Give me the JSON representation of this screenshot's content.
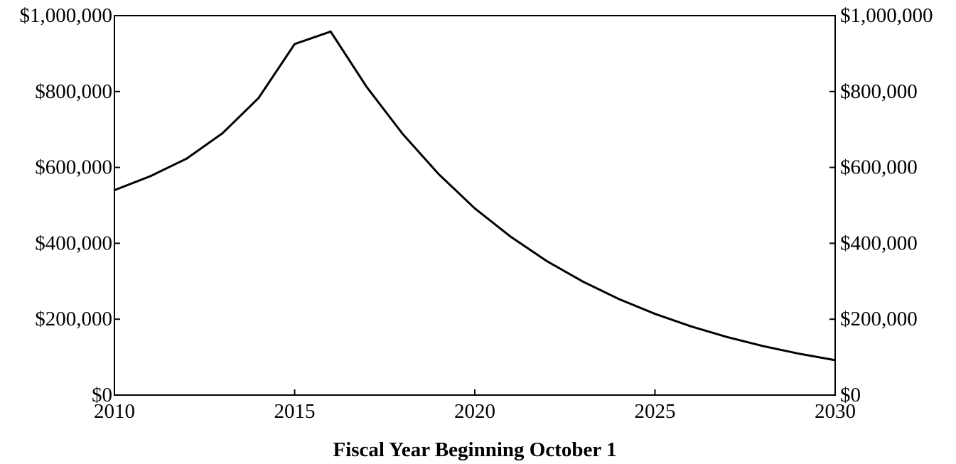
{
  "chart_data": {
    "type": "line",
    "title": "",
    "xlabel": "Fiscal Year Beginning October 1",
    "ylabel": "",
    "xlim": [
      2010,
      2030
    ],
    "ylim": [
      0,
      1000000
    ],
    "grid": false,
    "x_ticks": [
      2010,
      2015,
      2020,
      2025,
      2030
    ],
    "x_tick_labels": [
      "2010",
      "2015",
      "2020",
      "2025",
      "2030"
    ],
    "y_ticks": [
      0,
      200000,
      400000,
      600000,
      800000,
      1000000
    ],
    "y_tick_labels": [
      "$0",
      "$200,000",
      "$400,000",
      "$600,000",
      "$800,000",
      "$1,000,000"
    ],
    "y_axis_right_mirrored": true,
    "series": [
      {
        "color": "#000000",
        "x": [
          2010,
          2011,
          2012,
          2013,
          2014,
          2015,
          2016,
          2017,
          2018,
          2019,
          2020,
          2021,
          2022,
          2023,
          2024,
          2025,
          2026,
          2027,
          2028,
          2029,
          2030
        ],
        "y": [
          540000,
          577000,
          623000,
          690000,
          783000,
          925000,
          958000,
          812000,
          688000,
          582000,
          492000,
          417000,
          353000,
          299000,
          253000,
          214000,
          181000,
          153000,
          129000,
          109000,
          92000
        ]
      }
    ]
  }
}
